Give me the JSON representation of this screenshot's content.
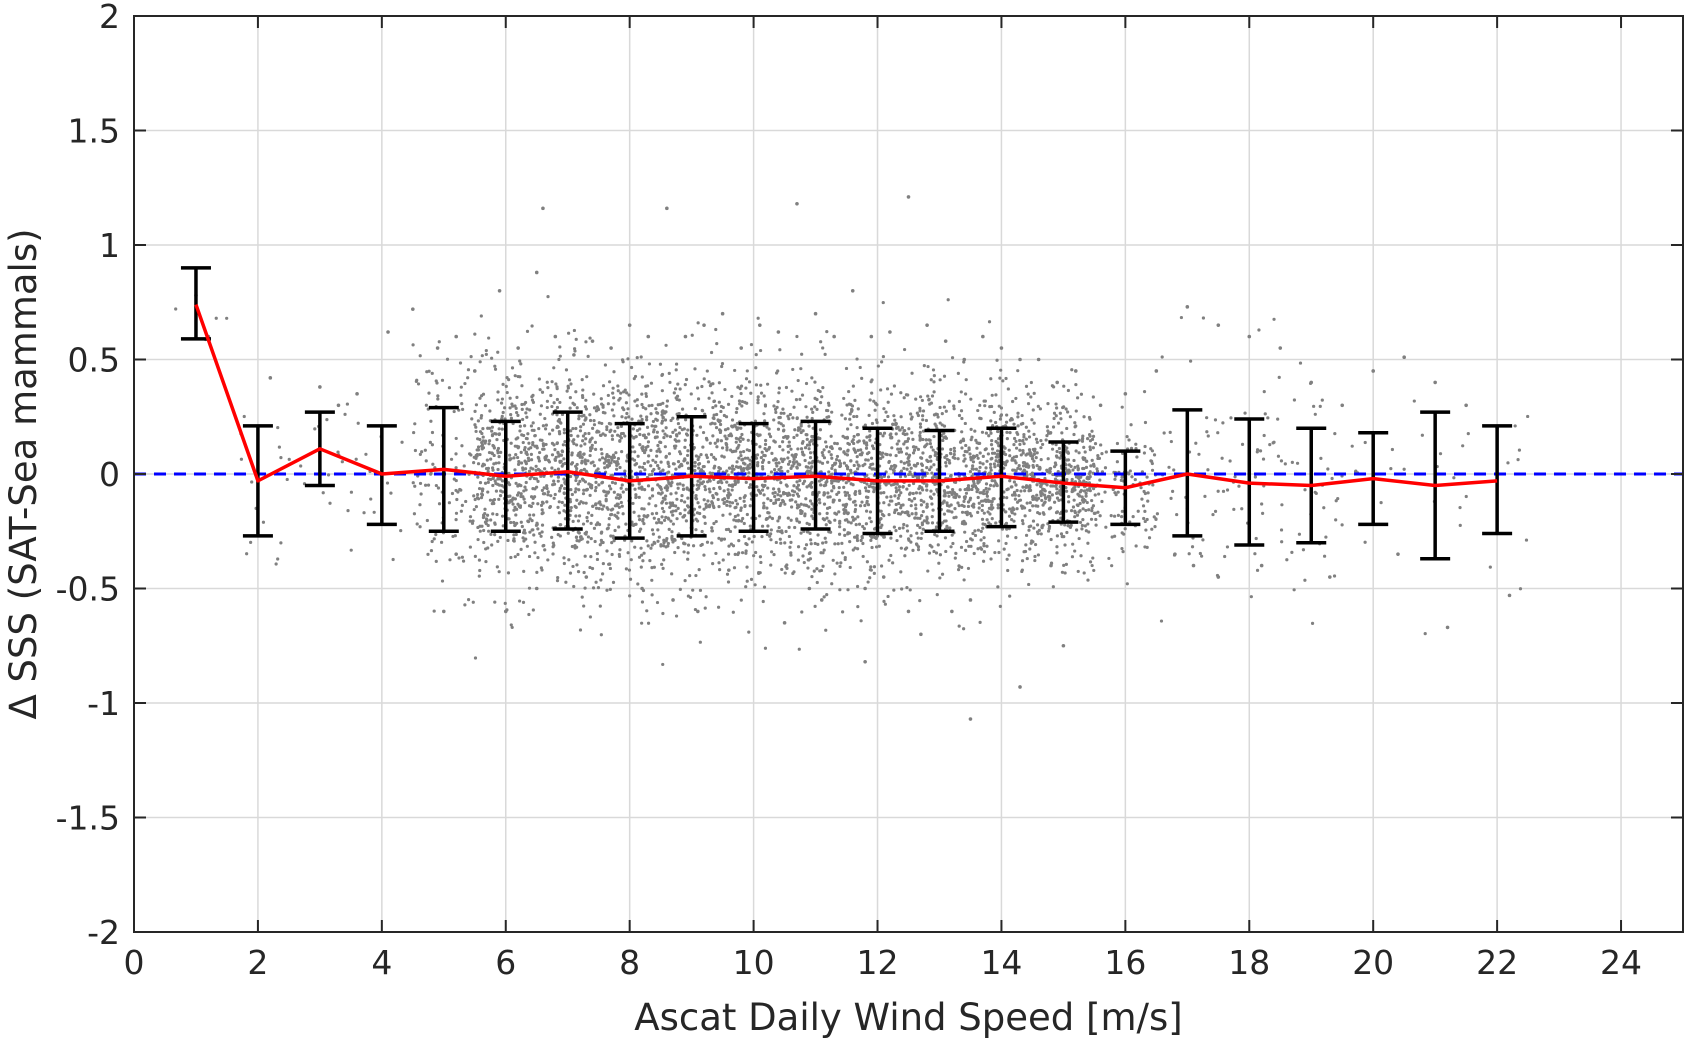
{
  "chart_data": {
    "type": "scatter",
    "title": "",
    "xlabel": "Ascat Daily Wind Speed [m/s]",
    "ylabel": "Δ SSS (SAT-Sea mammals)",
    "xlim": [
      0,
      25
    ],
    "ylim": [
      -2,
      2
    ],
    "x_ticks": [
      0,
      2,
      4,
      6,
      8,
      10,
      12,
      14,
      16,
      18,
      20,
      22,
      24
    ],
    "x_tick_labels": [
      "0",
      "2",
      "4",
      "6",
      "8",
      "10",
      "12",
      "14",
      "16",
      "18",
      "20",
      "22",
      "24"
    ],
    "y_ticks": [
      -2,
      -1.5,
      -1,
      -0.5,
      0,
      0.5,
      1,
      1.5,
      2
    ],
    "y_tick_labels": [
      "-2",
      "-1.5",
      "-1",
      "-0.5",
      "0",
      "0.5",
      "1",
      "1.5",
      "2"
    ],
    "grid": true,
    "legend": "none",
    "colors": {
      "scatter": "#808080",
      "mean_line": "#ff0000",
      "error_bars": "#000000",
      "zero_line": "#0000ff",
      "grid": "#d9d9d9",
      "axes": "#262626"
    },
    "zero_reference": {
      "y": 0,
      "style": "dashed"
    },
    "binned_mean": {
      "x": [
        1,
        2,
        3,
        4,
        5,
        6,
        7,
        8,
        9,
        10,
        11,
        12,
        13,
        14,
        15,
        16,
        17,
        18,
        19,
        20,
        21,
        22
      ],
      "y": [
        0.74,
        -0.03,
        0.11,
        0.0,
        0.02,
        -0.01,
        0.01,
        -0.03,
        -0.01,
        -0.02,
        -0.01,
        -0.03,
        -0.03,
        -0.01,
        -0.04,
        -0.06,
        0.0,
        -0.04,
        -0.05,
        -0.02,
        -0.05,
        -0.03
      ],
      "err_low": [
        0.59,
        -0.27,
        -0.05,
        -0.22,
        -0.25,
        -0.25,
        -0.24,
        -0.28,
        -0.27,
        -0.25,
        -0.24,
        -0.26,
        -0.25,
        -0.23,
        -0.21,
        -0.22,
        -0.27,
        -0.31,
        -0.3,
        -0.22,
        -0.37,
        -0.26
      ],
      "err_high": [
        0.9,
        0.21,
        0.27,
        0.21,
        0.29,
        0.23,
        0.27,
        0.22,
        0.25,
        0.22,
        0.23,
        0.2,
        0.19,
        0.2,
        0.14,
        0.1,
        0.28,
        0.24,
        0.2,
        0.18,
        0.27,
        0.21
      ]
    },
    "scatter_points": {
      "x": [
        1.0,
        1.2,
        2.2,
        3.0,
        3.3,
        3.6,
        4.1,
        4.5,
        4.9,
        5.2,
        5.5,
        5.9,
        6.2,
        6.5,
        6.6,
        6.8,
        7.1,
        7.4,
        7.7,
        8.0,
        8.3,
        8.6,
        8.9,
        9.2,
        9.5,
        9.8,
        10.1,
        10.4,
        10.7,
        11.0,
        11.3,
        11.6,
        11.9,
        12.2,
        12.5,
        12.8,
        13.1,
        13.4,
        13.7,
        14.0,
        14.3,
        14.6,
        14.9,
        15.2,
        15.6,
        16.0,
        16.5,
        17.0,
        17.5,
        18.0,
        18.5,
        19.0,
        19.5,
        20.0,
        20.5,
        21.0,
        21.5,
        22.0,
        5.0,
        6.0,
        8.2,
        8.7,
        9.1,
        10.5,
        11.1,
        11.8,
        12.5,
        12.7,
        13.2,
        13.5,
        17.1,
        17.5,
        11.8,
        13.5,
        14.3,
        15.0,
        21.2,
        22.2,
        5.2,
        6.5,
        7.3,
        9.6,
        10.9,
        12.1,
        14.8,
        16.8,
        18.2,
        19.3,
        20.4
      ],
      "y": [
        0.78,
        0.6,
        0.42,
        0.38,
        0.3,
        0.35,
        0.62,
        0.72,
        0.55,
        0.6,
        0.45,
        0.8,
        0.55,
        0.88,
        1.16,
        0.6,
        0.52,
        0.58,
        0.55,
        0.65,
        0.6,
        1.16,
        0.6,
        0.65,
        0.7,
        0.55,
        0.65,
        0.62,
        1.18,
        0.7,
        0.6,
        0.8,
        0.6,
        0.62,
        1.21,
        0.65,
        0.58,
        0.5,
        0.6,
        0.55,
        0.5,
        0.5,
        0.4,
        0.45,
        0.3,
        0.35,
        0.45,
        0.73,
        0.65,
        0.6,
        0.55,
        0.4,
        0.3,
        0.45,
        0.51,
        0.4,
        0.3,
        0.2,
        -0.6,
        -0.6,
        -0.5,
        -0.55,
        -0.6,
        -0.65,
        -0.55,
        -0.82,
        -0.6,
        -0.7,
        -0.6,
        -1.07,
        -0.4,
        -0.45,
        -0.5,
        -0.55,
        -0.93,
        -0.75,
        -0.67,
        -0.53,
        -0.35,
        -0.5,
        -0.45,
        -0.42,
        -0.5,
        -0.45,
        -0.4,
        -0.35,
        -0.4,
        -0.45,
        -0.35
      ]
    }
  }
}
